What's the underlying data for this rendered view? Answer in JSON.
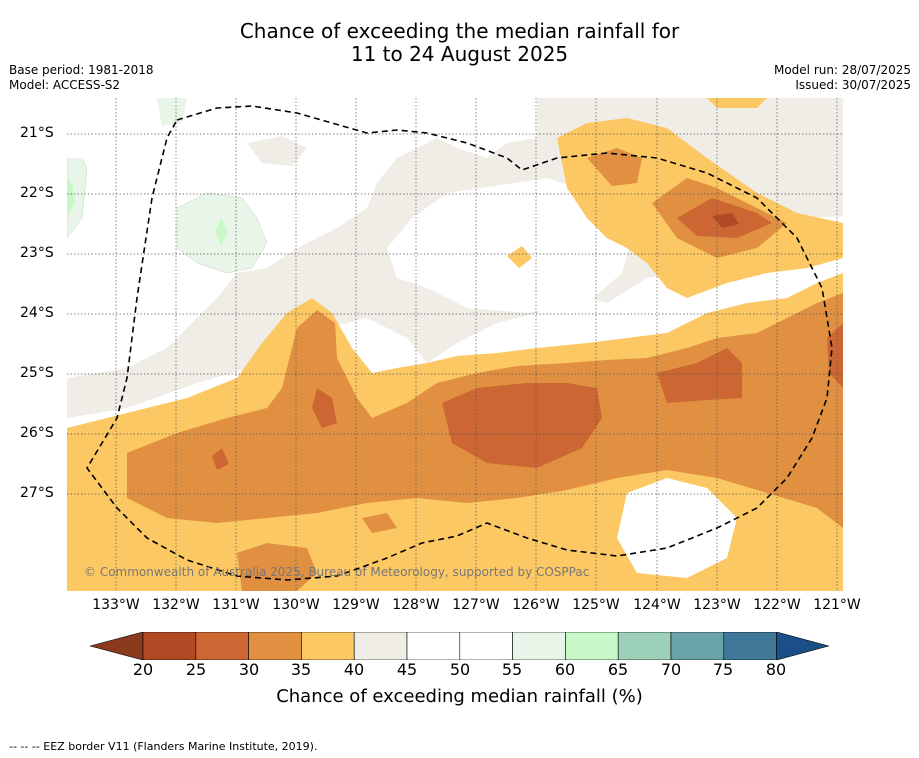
{
  "title": {
    "line1": "Chance of exceeding the median rainfall for",
    "line2": "11 to 24 August 2025"
  },
  "meta": {
    "base_period": "Base period: 1981-2018",
    "model": "Model: ACCESS-S2",
    "model_run": "Model run: 28/07/2025",
    "issued": "Issued: 30/07/2025"
  },
  "map": {
    "copyright": "© Commonwealth of Australia 2025, Bureau of Meteorology, supported by COSPPac",
    "lon_labels": [
      "133°W",
      "132°W",
      "131°W",
      "130°W",
      "129°W",
      "128°W",
      "127°W",
      "126°W",
      "125°W",
      "124°W",
      "123°W",
      "122°W",
      "121°W"
    ],
    "lat_labels": [
      "21°S",
      "22°S",
      "23°S",
      "24°S",
      "25°S",
      "26°S",
      "27°S"
    ],
    "eez_border_note": "--  --  -- EEZ border V11 (Flanders Marine Institute, 2019)."
  },
  "legend": {
    "title": "Chance of exceeding median rainfall (%)",
    "ticks": [
      "20",
      "25",
      "30",
      "35",
      "40",
      "45",
      "50",
      "55",
      "60",
      "65",
      "70",
      "75",
      "80"
    ],
    "colors": [
      "#8b3a1e",
      "#b04a24",
      "#cc6633",
      "#e09040",
      "#fcc864",
      "#f0ece6",
      "#ffffff",
      "#ffffff",
      "#e8f5e8",
      "#c8f8c8",
      "#9dd0b8",
      "#6ba4a8",
      "#3f7898",
      "#1a4f88"
    ]
  }
}
